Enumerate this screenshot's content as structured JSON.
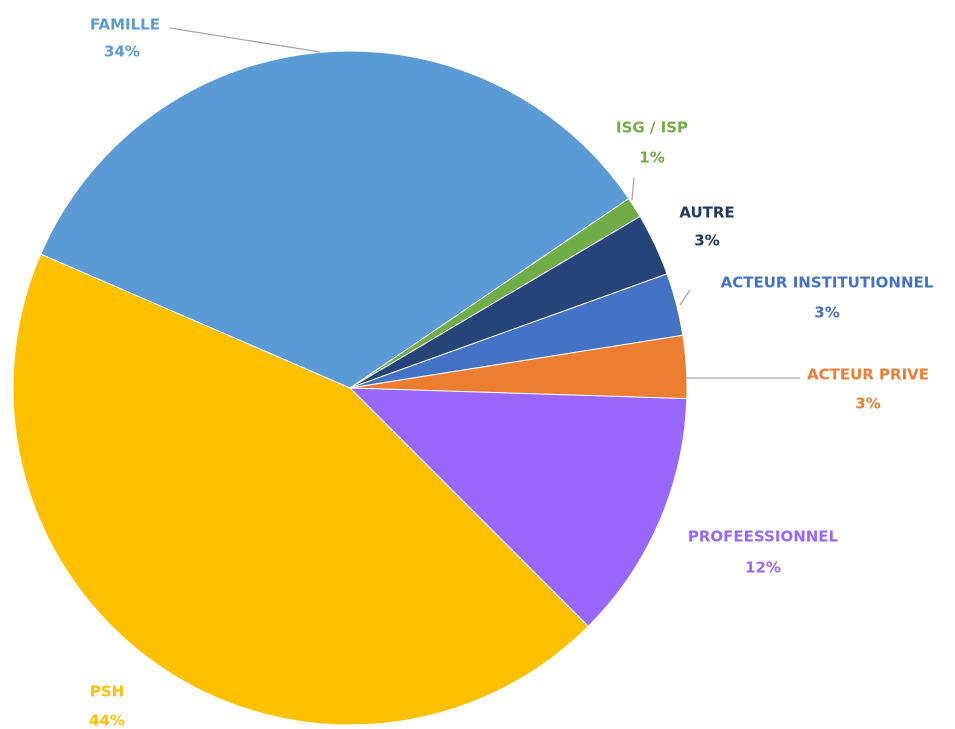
{
  "chart_data": {
    "type": "pie",
    "categories": [
      "FAMILLE",
      "ISG / ISP",
      "AUTRE",
      "ACTEUR INSTITUTIONNEL",
      "ACTEUR PRIVE",
      "PROFEESSIONNEL",
      "PSH"
    ],
    "values": [
      34,
      1,
      3,
      3,
      3,
      12,
      44
    ],
    "value_labels": [
      "34%",
      "1%",
      "3%",
      "3%",
      "3%",
      "12%",
      "44%"
    ],
    "colors": [
      "#5b9bd5",
      "#70ad47",
      "#264478",
      "#4472c4",
      "#ed7d31",
      "#9966ff",
      "#ffc000"
    ]
  }
}
